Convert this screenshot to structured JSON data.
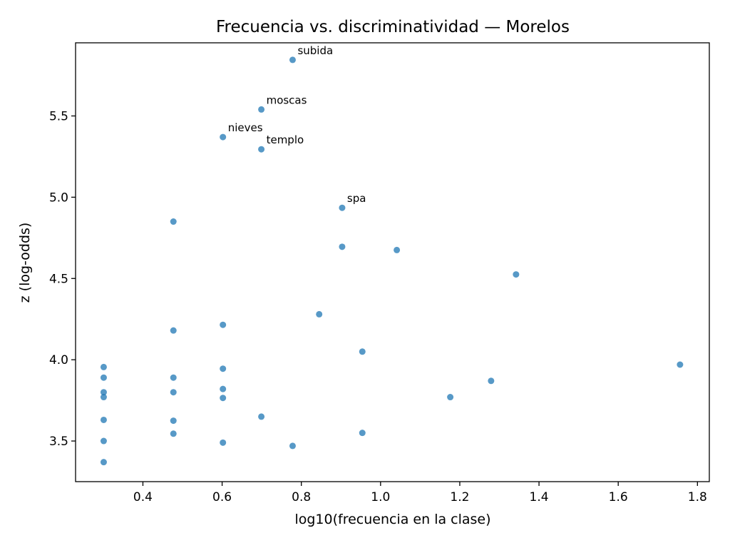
{
  "chart_data": {
    "type": "scatter",
    "title": "Frecuencia vs. discriminatividad — Morelos",
    "xlabel": "log10(frecuencia en la clase)",
    "ylabel": "z (log-odds)",
    "xlim": [
      0.23,
      1.83
    ],
    "ylim": [
      3.25,
      5.95
    ],
    "xticks": [
      0.4,
      0.6,
      0.8,
      1.0,
      1.2,
      1.4,
      1.6,
      1.8
    ],
    "xtick_labels": [
      "0.4",
      "0.6",
      "0.8",
      "1.0",
      "1.2",
      "1.4",
      "1.6",
      "1.8"
    ],
    "yticks": [
      3.5,
      4.0,
      4.5,
      5.0,
      5.5
    ],
    "ytick_labels": [
      "3.5",
      "4.0",
      "4.5",
      "5.0",
      "5.5"
    ],
    "grid": false,
    "color": "#1f77b4",
    "points": [
      {
        "x": 0.778,
        "y": 5.845,
        "label": "subida"
      },
      {
        "x": 0.699,
        "y": 5.54,
        "label": "moscas"
      },
      {
        "x": 0.602,
        "y": 5.37,
        "label": "nieves"
      },
      {
        "x": 0.699,
        "y": 5.295,
        "label": "templo"
      },
      {
        "x": 0.903,
        "y": 4.935,
        "label": "spa"
      },
      {
        "x": 0.477,
        "y": 4.85
      },
      {
        "x": 0.903,
        "y": 4.695
      },
      {
        "x": 1.041,
        "y": 4.675
      },
      {
        "x": 1.342,
        "y": 4.525
      },
      {
        "x": 0.845,
        "y": 4.28
      },
      {
        "x": 0.602,
        "y": 4.215
      },
      {
        "x": 0.477,
        "y": 4.18
      },
      {
        "x": 0.954,
        "y": 4.05
      },
      {
        "x": 1.756,
        "y": 3.97
      },
      {
        "x": 0.301,
        "y": 3.955
      },
      {
        "x": 0.602,
        "y": 3.945
      },
      {
        "x": 0.301,
        "y": 3.89
      },
      {
        "x": 0.477,
        "y": 3.89
      },
      {
        "x": 1.279,
        "y": 3.87
      },
      {
        "x": 0.602,
        "y": 3.82
      },
      {
        "x": 0.301,
        "y": 3.8
      },
      {
        "x": 0.477,
        "y": 3.8
      },
      {
        "x": 0.301,
        "y": 3.77
      },
      {
        "x": 1.176,
        "y": 3.77
      },
      {
        "x": 0.602,
        "y": 3.765
      },
      {
        "x": 0.699,
        "y": 3.65
      },
      {
        "x": 0.301,
        "y": 3.63
      },
      {
        "x": 0.477,
        "y": 3.625
      },
      {
        "x": 0.954,
        "y": 3.55
      },
      {
        "x": 0.477,
        "y": 3.545
      },
      {
        "x": 0.301,
        "y": 3.5
      },
      {
        "x": 0.602,
        "y": 3.49
      },
      {
        "x": 0.778,
        "y": 3.47
      },
      {
        "x": 0.301,
        "y": 3.37
      }
    ]
  }
}
